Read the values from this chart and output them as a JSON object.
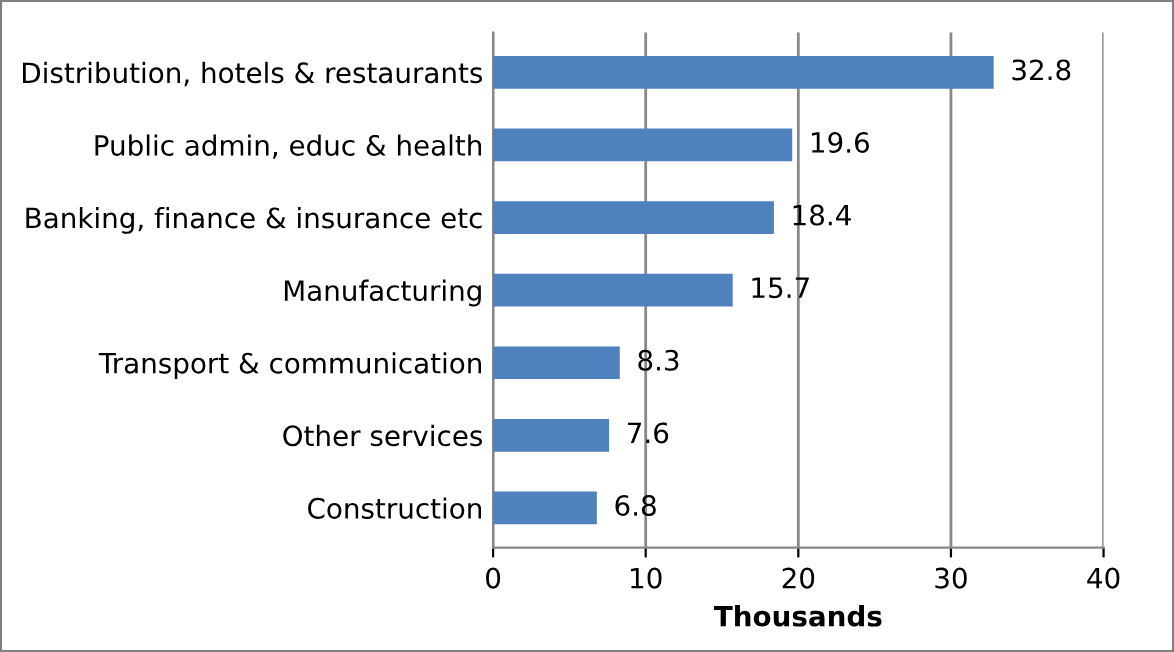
{
  "chart_data": {
    "type": "bar",
    "orientation": "horizontal",
    "xlabel": "Thousands",
    "categories": [
      "Distribution, hotels & restaurants",
      "Public admin, educ & health",
      "Banking, finance & insurance etc",
      "Manufacturing",
      "Transport & communication",
      "Other services",
      "Construction"
    ],
    "values": [
      32.8,
      19.6,
      18.4,
      15.7,
      8.3,
      7.6,
      6.8
    ],
    "color": "#4f81bd",
    "xlim": [
      0,
      40
    ],
    "xticks": [
      0,
      10,
      20,
      30,
      40
    ],
    "grid": "x",
    "data_labels": true
  }
}
